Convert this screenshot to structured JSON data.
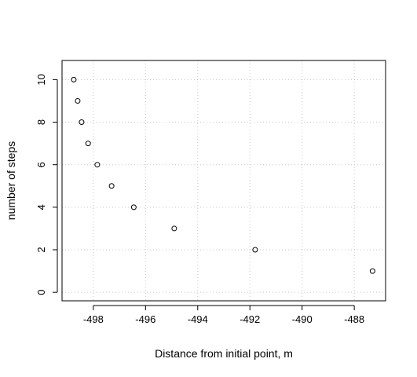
{
  "chart_data": {
    "type": "scatter",
    "title": "",
    "xlabel": "Distance from initial point, m",
    "ylabel": "number of steps",
    "xlim": [
      -499.2,
      -486.8
    ],
    "ylim": [
      -0.4,
      10.9
    ],
    "xticks": [
      -498,
      -496,
      -494,
      -492,
      -490,
      -488
    ],
    "yticks": [
      0,
      2,
      4,
      6,
      8,
      10
    ],
    "grid": true,
    "marker": "open-circle",
    "series": [
      {
        "points": [
          {
            "x": -498.75,
            "y": 10
          },
          {
            "x": -498.6,
            "y": 9
          },
          {
            "x": -498.45,
            "y": 8
          },
          {
            "x": -498.2,
            "y": 7
          },
          {
            "x": -497.85,
            "y": 6
          },
          {
            "x": -497.3,
            "y": 5
          },
          {
            "x": -496.45,
            "y": 4
          },
          {
            "x": -494.9,
            "y": 3
          },
          {
            "x": -491.8,
            "y": 2
          },
          {
            "x": -487.3,
            "y": 1
          }
        ]
      }
    ]
  },
  "colors": {
    "points": "#000000",
    "grid": "#c8c8c8",
    "axis": "#000000",
    "background": "#ffffff"
  }
}
